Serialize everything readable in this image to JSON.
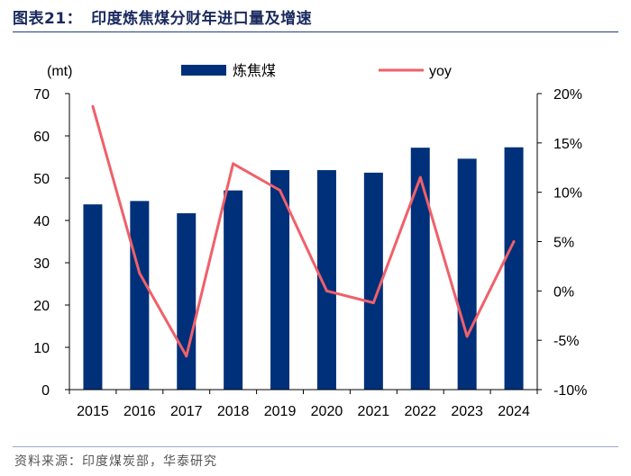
{
  "header": {
    "figure_label": "图表21：",
    "title": "印度炼焦煤分财年进口量及增速"
  },
  "source": "资料来源：印度煤炭部，华泰研究",
  "colors": {
    "bar": "#00307a",
    "line": "#f0606a",
    "title": "#1a2a5e",
    "rule": "#1f3f7a"
  },
  "chart_data": {
    "type": "bar",
    "title": "印度炼焦煤分财年进口量及增速",
    "categories": [
      "2015",
      "2016",
      "2017",
      "2018",
      "2019",
      "2020",
      "2021",
      "2022",
      "2023",
      "2024"
    ],
    "series": [
      {
        "name": "炼焦煤",
        "type": "bar",
        "axis": "left",
        "values": [
          43.8,
          44.6,
          41.7,
          47.1,
          51.9,
          51.9,
          51.3,
          57.2,
          54.6,
          57.3
        ]
      },
      {
        "name": "yoy",
        "type": "line",
        "axis": "right",
        "values": [
          18.7,
          1.8,
          -6.6,
          12.9,
          10.2,
          0.0,
          -1.2,
          11.5,
          -4.6,
          5.0
        ]
      }
    ],
    "ylabel": "(mt)",
    "ylim": [
      0,
      70
    ],
    "yticks": [
      "0",
      "10",
      "20",
      "30",
      "40",
      "50",
      "60",
      "70"
    ],
    "y2lim": [
      -10,
      20
    ],
    "y2ticks": [
      "-10%",
      "-5%",
      "0%",
      "5%",
      "10%",
      "15%",
      "20%"
    ],
    "legend_position": "top",
    "grid": false
  }
}
